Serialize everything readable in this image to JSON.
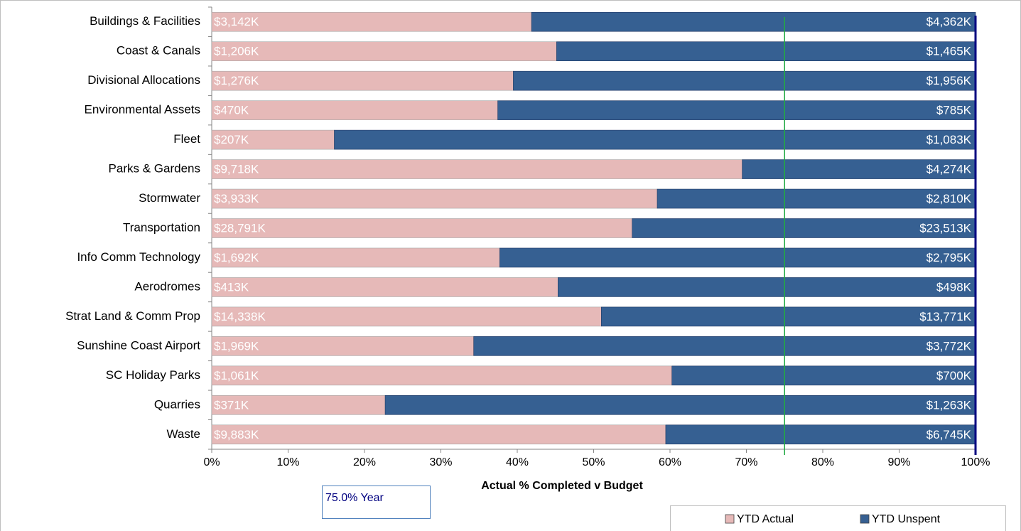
{
  "chart_data": {
    "type": "bar",
    "orientation": "horizontal",
    "stacked": "percent",
    "x_label": "Actual % Completed v Budget",
    "categories": [
      "Buildings & Facilities",
      "Coast & Canals",
      "Divisional Allocations",
      "Environmental Assets",
      "Fleet",
      "Parks & Gardens",
      "Stormwater",
      "Transportation",
      "Info Comm Technology",
      "Aerodromes",
      "Strat Land & Comm Prop",
      "Sunshine Coast Airport",
      "SC Holiday Parks",
      "Quarries",
      "Waste"
    ],
    "series": [
      {
        "name": "YTD Actual",
        "color": "#e6b9b8",
        "values": [
          3142,
          1206,
          1276,
          470,
          207,
          9718,
          3933,
          28791,
          1692,
          413,
          14338,
          1969,
          1061,
          371,
          9883
        ],
        "value_labels": [
          "$3,142K",
          "$1,206K",
          "$1,276K",
          "$470K",
          "$207K",
          "$9,718K",
          "$3,933K",
          "$28,791K",
          "$1,692K",
          "$413K",
          "$14,338K",
          "$1,969K",
          "$1,061K",
          "$371K",
          "$9,883K"
        ]
      },
      {
        "name": "YTD Unspent",
        "color": "#366092",
        "values": [
          4362,
          1465,
          1956,
          785,
          1083,
          4274,
          2810,
          23513,
          2795,
          498,
          13771,
          3772,
          700,
          1263,
          6745
        ],
        "value_labels": [
          "$4,362K",
          "$1,465K",
          "$1,956K",
          "$785K",
          "$1,083K",
          "$4,274K",
          "$2,810K",
          "$23,513K",
          "$2,795K",
          "$498K",
          "$13,771K",
          "$3,772K",
          "$700K",
          "$1,263K",
          "$6,745K"
        ]
      }
    ],
    "xlim": [
      0,
      100
    ],
    "xticks": [
      {
        "value": 0,
        "label": "0%"
      },
      {
        "value": 10,
        "label": "10%"
      },
      {
        "value": 20,
        "label": "20%"
      },
      {
        "value": 30,
        "label": "30%"
      },
      {
        "value": 40,
        "label": "40%"
      },
      {
        "value": 50,
        "label": "50%"
      },
      {
        "value": 60,
        "label": "60%"
      },
      {
        "value": 70,
        "label": "70%"
      },
      {
        "value": 80,
        "label": "80%"
      },
      {
        "value": 90,
        "label": "90%"
      },
      {
        "value": 100,
        "label": "100%"
      }
    ],
    "reference_line": {
      "value": 75,
      "label": "75.0% Year",
      "color": "#22aa44"
    },
    "legend": "bottom-right"
  }
}
